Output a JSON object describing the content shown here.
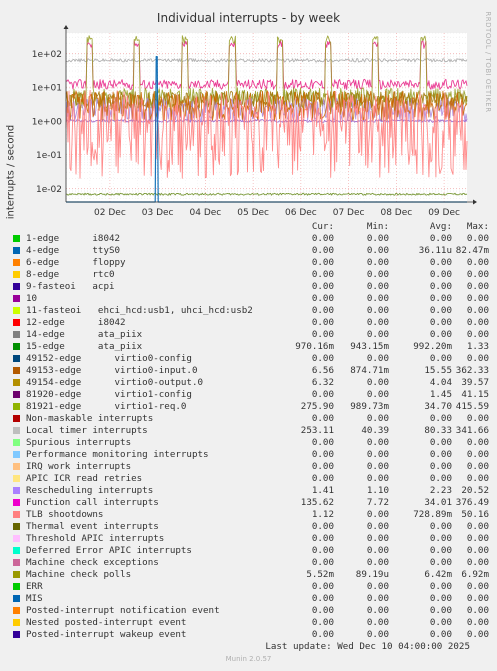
{
  "chart_data": {
    "type": "line",
    "title": "Individual interrupts - by week",
    "ylabel": "interrupts / second",
    "yscale": "log",
    "ylim": [
      0.004,
      400
    ],
    "y_ticks": [
      {
        "value": 0.01,
        "label": "1e-02"
      },
      {
        "value": 0.1,
        "label": "1e-01"
      },
      {
        "value": 1,
        "label": "1e+00"
      },
      {
        "value": 10,
        "label": "1e+01"
      },
      {
        "value": 100,
        "label": "1e+02"
      }
    ],
    "x_tick_labels": [
      "02 Dec",
      "03 Dec",
      "04 Dec",
      "05 Dec",
      "06 Dec",
      "07 Dec",
      "08 Dec",
      "09 Dec"
    ],
    "x_range_days": [
      0,
      8.4
    ],
    "x_tick_days": [
      0.92,
      1.92,
      2.92,
      3.92,
      4.92,
      5.92,
      6.92,
      7.92
    ],
    "plotted_series": [
      {
        "name": "Function call interrupts",
        "color": "#E7298A",
        "pattern": "spiky",
        "base": 12,
        "spike": 200,
        "noise": 0.15
      },
      {
        "name": "Local timer interrupts",
        "color": "#AAAAAA",
        "pattern": "steady",
        "base": 62,
        "noise": 0.05
      },
      {
        "name": "81921-edge virtio1-req.0",
        "color": "#98A028",
        "pattern": "spiky",
        "base": 4.8,
        "spike": 280,
        "noise": 0.3
      },
      {
        "name": "49154-edge virtio0-output.0",
        "color": "#A07808",
        "pattern": "noisy",
        "base": 4.2,
        "noise": 0.25
      },
      {
        "name": "Rescheduling interrupts",
        "color": "#AA88DD",
        "pattern": "noisy",
        "base": 2.1,
        "noise": 0.35
      },
      {
        "name": "49153-edge virtio0-input.0",
        "color": "#CC6600",
        "pattern": "noisy",
        "base": 2.8,
        "noise": 0.45
      },
      {
        "name": "15-edge ata_piix",
        "color": "#9966CC",
        "pattern": "steady",
        "base": 1.0,
        "noise": 0.04
      },
      {
        "name": "TLB shootdowns",
        "color": "#FF7F7F",
        "pattern": "wild",
        "base": 0.4,
        "noise": 1.3
      },
      {
        "name": "Machine check polls",
        "color": "#6B8E23",
        "pattern": "steady",
        "base": 0.0068,
        "noise": 0.03
      },
      {
        "name": "4-edge ttyS0",
        "color": "#0066B3",
        "pattern": "spike-once",
        "base": 0.003,
        "spike": 80,
        "noise": 0
      }
    ],
    "columns": [
      "Cur:",
      "Min:",
      "Avg:",
      "Max:"
    ],
    "legend": [
      {
        "name": "1-edge      i8042",
        "color": "#00CC00",
        "cur": "0.00",
        "min": "0.00",
        "avg": "0.00",
        "max": "0.00"
      },
      {
        "name": "4-edge      ttyS0",
        "color": "#0066B3",
        "cur": "0.00",
        "min": "0.00",
        "avg": "36.11u",
        "max": "82.47m"
      },
      {
        "name": "6-edge      floppy",
        "color": "#FF8000",
        "cur": "0.00",
        "min": "0.00",
        "avg": "0.00",
        "max": "0.00"
      },
      {
        "name": "8-edge      rtc0",
        "color": "#FFCC00",
        "cur": "0.00",
        "min": "0.00",
        "avg": "0.00",
        "max": "0.00"
      },
      {
        "name": "9-fasteoi   acpi",
        "color": "#330099",
        "cur": "0.00",
        "min": "0.00",
        "avg": "0.00",
        "max": "0.00"
      },
      {
        "name": "10",
        "color": "#990099",
        "cur": "0.00",
        "min": "0.00",
        "avg": "0.00",
        "max": "0.00"
      },
      {
        "name": "11-fasteoi   ehci_hcd:usb1, uhci_hcd:usb2",
        "color": "#CCFF00",
        "cur": "0.00",
        "min": "0.00",
        "avg": "0.00",
        "max": "0.00"
      },
      {
        "name": "12-edge      i8042",
        "color": "#FF0000",
        "cur": "0.00",
        "min": "0.00",
        "avg": "0.00",
        "max": "0.00"
      },
      {
        "name": "14-edge      ata_piix",
        "color": "#808080",
        "cur": "0.00",
        "min": "0.00",
        "avg": "0.00",
        "max": "0.00"
      },
      {
        "name": "15-edge      ata_piix",
        "color": "#008F00",
        "cur": "970.16m",
        "min": "943.15m",
        "avg": "992.20m",
        "max": "1.33"
      },
      {
        "name": "49152-edge      virtio0-config",
        "color": "#00487D",
        "cur": "0.00",
        "min": "0.00",
        "avg": "0.00",
        "max": "0.00"
      },
      {
        "name": "49153-edge      virtio0-input.0",
        "color": "#B35A00",
        "cur": "6.56",
        "min": "874.71m",
        "avg": "15.55",
        "max": "362.33"
      },
      {
        "name": "49154-edge      virtio0-output.0",
        "color": "#B38F00",
        "cur": "6.32",
        "min": "0.00",
        "avg": "4.04",
        "max": "39.57"
      },
      {
        "name": "81920-edge      virtio1-config",
        "color": "#6B006B",
        "cur": "0.00",
        "min": "0.00",
        "avg": "1.45",
        "max": "41.15"
      },
      {
        "name": "81921-edge      virtio1-req.0",
        "color": "#8FB300",
        "cur": "275.90",
        "min": "989.73m",
        "avg": "34.70",
        "max": "415.59"
      },
      {
        "name": "Non-maskable interrupts",
        "color": "#B30000",
        "cur": "0.00",
        "min": "0.00",
        "avg": "0.00",
        "max": "0.00"
      },
      {
        "name": "Local timer interrupts",
        "color": "#BEBEBE",
        "cur": "253.11",
        "min": "40.39",
        "avg": "80.33",
        "max": "341.66"
      },
      {
        "name": "Spurious interrupts",
        "color": "#80FF80",
        "cur": "0.00",
        "min": "0.00",
        "avg": "0.00",
        "max": "0.00"
      },
      {
        "name": "Performance monitoring interrupts",
        "color": "#80C9FF",
        "cur": "0.00",
        "min": "0.00",
        "avg": "0.00",
        "max": "0.00"
      },
      {
        "name": "IRQ work interrupts",
        "color": "#FFC080",
        "cur": "0.00",
        "min": "0.00",
        "avg": "0.00",
        "max": "0.00"
      },
      {
        "name": "APIC ICR read retries",
        "color": "#FFE680",
        "cur": "0.00",
        "min": "0.00",
        "avg": "0.00",
        "max": "0.00"
      },
      {
        "name": "Rescheduling interrupts",
        "color": "#AA80FF",
        "cur": "1.41",
        "min": "1.10",
        "avg": "2.23",
        "max": "20.52"
      },
      {
        "name": "Function call interrupts",
        "color": "#EE00CC",
        "cur": "135.62",
        "min": "7.72",
        "avg": "34.01",
        "max": "376.49"
      },
      {
        "name": "TLB shootdowns",
        "color": "#FF8080",
        "cur": "1.12",
        "min": "0.00",
        "avg": "728.89m",
        "max": "50.16"
      },
      {
        "name": "Thermal event interrupts",
        "color": "#666600",
        "cur": "0.00",
        "min": "0.00",
        "avg": "0.00",
        "max": "0.00"
      },
      {
        "name": "Threshold APIC interrupts",
        "color": "#FFBFFF",
        "cur": "0.00",
        "min": "0.00",
        "avg": "0.00",
        "max": "0.00"
      },
      {
        "name": "Deferred Error APIC interrupts",
        "color": "#00FFCC",
        "cur": "0.00",
        "min": "0.00",
        "avg": "0.00",
        "max": "0.00"
      },
      {
        "name": "Machine check exceptions",
        "color": "#CC6699",
        "cur": "0.00",
        "min": "0.00",
        "avg": "0.00",
        "max": "0.00"
      },
      {
        "name": "Machine check polls",
        "color": "#999900",
        "cur": "5.52m",
        "min": "89.19u",
        "avg": "6.42m",
        "max": "6.92m"
      },
      {
        "name": "ERR",
        "color": "#00CC00",
        "cur": "0.00",
        "min": "0.00",
        "avg": "0.00",
        "max": "0.00"
      },
      {
        "name": "MIS",
        "color": "#0066B3",
        "cur": "0.00",
        "min": "0.00",
        "avg": "0.00",
        "max": "0.00"
      },
      {
        "name": "Posted-interrupt notification event",
        "color": "#FF8000",
        "cur": "0.00",
        "min": "0.00",
        "avg": "0.00",
        "max": "0.00"
      },
      {
        "name": "Nested posted-interrupt event",
        "color": "#FFCC00",
        "cur": "0.00",
        "min": "0.00",
        "avg": "0.00",
        "max": "0.00"
      },
      {
        "name": "Posted-interrupt wakeup event",
        "color": "#330099",
        "cur": "0.00",
        "min": "0.00",
        "avg": "0.00",
        "max": "0.00"
      }
    ]
  },
  "side_label": "RRDTOOL / TOBI OETIKER",
  "last_update": "Last update:  Wed Dec 10 04:00:00 2025",
  "footer": "Munin 2.0.57"
}
